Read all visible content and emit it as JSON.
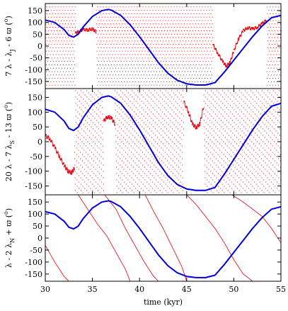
{
  "chart_data": [
    {
      "type": "scatter",
      "ylabel": "7 λ - λ_J - 6 ϖ (°)",
      "ylabel_parts": {
        "a": "7 λ - λ",
        "sub": "J",
        "b": " - 6 ",
        "c": "ϖ",
        "d": " (",
        "sup": "o",
        "e": ")"
      },
      "xlim": [
        30,
        55
      ],
      "ylim": [
        -180,
        180
      ],
      "yticks": [
        -150,
        -100,
        -50,
        0,
        50,
        100,
        150
      ],
      "grid": false,
      "series": [
        {
          "role": "red-dotted",
          "color": "#e8000b",
          "circulating_rate_deg_per_kyr": -2400,
          "libration_segments": [
            {
              "x": [
                33.2,
                33.6,
                34.0,
                34.5,
                35.0,
                35.4
              ],
              "y": [
                55,
                62,
                70,
                68,
                72,
                60
              ]
            },
            {
              "x": [
                47.8,
                48.3,
                48.8,
                49.2,
                49.6,
                50.0,
                50.5,
                51.0,
                51.5,
                52.0,
                52.5,
                53.0,
                53.5
              ],
              "y": [
                5,
                -30,
                -65,
                -85,
                -70,
                -20,
                30,
                65,
                78,
                72,
                80,
                95,
                110
              ]
            }
          ]
        },
        {
          "role": "blue-solid",
          "color": "#0000dd",
          "x": [
            30,
            31,
            32,
            32.5,
            33,
            33.5,
            34,
            35,
            36,
            36.7,
            37,
            38,
            39,
            40,
            41,
            42,
            43,
            44,
            45,
            46,
            47,
            48,
            49,
            50,
            51,
            52,
            53,
            54,
            55
          ],
          "y": [
            110,
            100,
            70,
            45,
            38,
            50,
            80,
            125,
            150,
            155,
            152,
            130,
            90,
            40,
            -15,
            -70,
            -115,
            -145,
            -160,
            -165,
            -165,
            -155,
            -110,
            -60,
            -10,
            40,
            85,
            120,
            130
          ]
        }
      ]
    },
    {
      "type": "scatter",
      "ylabel": "20 λ - 7 λ_S - 13 ϖ (°)",
      "ylabel_parts": {
        "a": "20 λ - 7 λ",
        "sub": "S",
        "b": " - 13 ",
        "c": "ϖ",
        "d": " (",
        "sup": "o",
        "e": ")"
      },
      "xlim": [
        30,
        55
      ],
      "ylim": [
        -180,
        180
      ],
      "yticks": [
        -150,
        -100,
        -50,
        0,
        50,
        100,
        150
      ],
      "grid": false,
      "series": [
        {
          "role": "red-dotted",
          "color": "#e8000b",
          "circulating_rate_deg_per_kyr": -1800,
          "libration_segments": [
            {
              "x": [
                30.0,
                30.5,
                31.0,
                31.5,
                32.0,
                32.4,
                32.8,
                33.1
              ],
              "y": [
                20,
                10,
                -20,
                -50,
                -80,
                -100,
                -105,
                -90
              ]
            },
            {
              "x": [
                36.2,
                36.6,
                37.0,
                37.4
              ],
              "y": [
                70,
                85,
                80,
                60
              ]
            },
            {
              "x": [
                44.7,
                45.2,
                45.6,
                46.0,
                46.4,
                46.8
              ],
              "y": [
                135,
                100,
                60,
                48,
                60,
                120
              ]
            }
          ]
        },
        {
          "role": "blue-solid",
          "color": "#0000dd",
          "x": [
            30,
            31,
            32,
            32.5,
            33,
            33.5,
            34,
            35,
            36,
            36.7,
            37,
            38,
            39,
            40,
            41,
            42,
            43,
            44,
            45,
            46,
            47,
            48,
            49,
            50,
            51,
            52,
            53,
            54,
            55
          ],
          "y": [
            110,
            100,
            70,
            45,
            38,
            50,
            80,
            125,
            150,
            155,
            152,
            130,
            90,
            40,
            -15,
            -70,
            -115,
            -145,
            -160,
            -165,
            -165,
            -155,
            -110,
            -60,
            -10,
            40,
            85,
            120,
            130
          ]
        }
      ]
    },
    {
      "type": "scatter",
      "ylabel": "λ - 2 λ_N + ϖ (°)",
      "ylabel_parts": {
        "a": "λ - 2 λ",
        "sub": "N",
        "b": " + ",
        "c": "ϖ",
        "d": " (",
        "sup": "o",
        "e": ")"
      },
      "xlabel": "time (kyr)",
      "xlim": [
        30,
        55
      ],
      "ylim": [
        -180,
        180
      ],
      "xticks": [
        30,
        35,
        40,
        45,
        50,
        55
      ],
      "yticks": [
        -150,
        -100,
        -50,
        0,
        50,
        100,
        150
      ],
      "grid": false,
      "series": [
        {
          "role": "red-lines",
          "color": "#e8000b",
          "segments": [
            {
              "x": [
                30.0,
                31.0,
                32.0,
                32.5
              ],
              "y": [
                -30,
                -100,
                -160,
                -180
              ]
            },
            {
              "x": [
                33.5,
                34.5,
                35.5,
                36.5,
                37.5,
                38.5,
                39.0
              ],
              "y": [
                180,
                120,
                60,
                10,
                -60,
                -130,
                -180
              ]
            },
            {
              "x": [
                36.3,
                37.5,
                38.5,
                39.5,
                40.5,
                41.5,
                42.0
              ],
              "y": [
                180,
                120,
                40,
                -30,
                -100,
                -160,
                -180
              ]
            },
            {
              "x": [
                40.6,
                41.5,
                42.5,
                43.5,
                44.5,
                45.0
              ],
              "y": [
                180,
                110,
                40,
                -40,
                -120,
                -180
              ]
            },
            {
              "x": [
                45.0,
                46.0,
                47.0,
                48.0,
                49.0,
                50.0,
                51.0,
                52.0
              ],
              "y": [
                180,
                140,
                90,
                40,
                -20,
                -90,
                -150,
                -180
              ]
            },
            {
              "x": [
                49.8,
                51.0,
                52.0,
                53.0,
                54.0,
                55.0
              ],
              "y": [
                180,
                150,
                120,
                90,
                40,
                -20
              ]
            }
          ]
        },
        {
          "role": "blue-solid",
          "color": "#0000dd",
          "x": [
            30,
            31,
            32,
            32.5,
            33,
            33.5,
            34,
            35,
            36,
            36.7,
            37,
            38,
            39,
            40,
            41,
            42,
            43,
            44,
            45,
            46,
            47,
            48,
            49,
            50,
            51,
            52,
            53,
            54,
            55
          ],
          "y": [
            110,
            100,
            70,
            45,
            38,
            50,
            80,
            125,
            150,
            155,
            152,
            130,
            90,
            40,
            -15,
            -70,
            -115,
            -145,
            -160,
            -165,
            -165,
            -155,
            -110,
            -60,
            -10,
            40,
            85,
            120,
            130
          ]
        }
      ]
    }
  ]
}
